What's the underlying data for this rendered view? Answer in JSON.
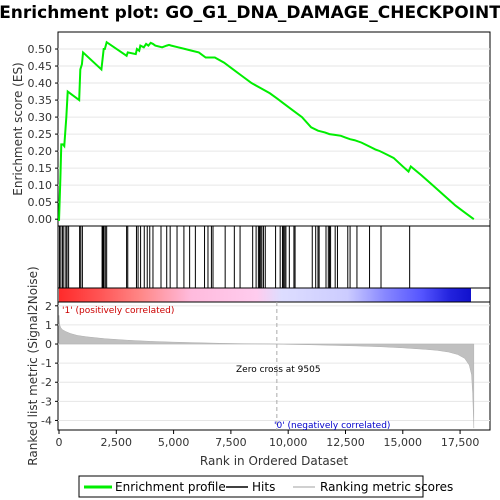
{
  "chart_data": {
    "title": "Enrichment plot: GO_G1_DNA_DAMAGE_CHECKPOINT",
    "type": "line",
    "xlabel": "Rank in Ordered Dataset",
    "xlim": [
      0,
      18500
    ],
    "x_ticks": [
      0,
      2500,
      5000,
      7500,
      10000,
      12500,
      15000,
      17500
    ],
    "x_tick_labels": [
      "0",
      "2,500",
      "5,000",
      "7,500",
      "10,000",
      "12,500",
      "15,000",
      "17,500"
    ],
    "es_panel": {
      "ylabel": "Enrichment score (ES)",
      "ylim": [
        -0.02,
        0.55
      ],
      "y_ticks": [
        0.0,
        0.05,
        0.1,
        0.15,
        0.2,
        0.25,
        0.3,
        0.35,
        0.4,
        0.45,
        0.5
      ],
      "y_tick_labels": [
        "0.00",
        "0.05",
        "0.10",
        "0.15",
        "0.20",
        "0.25",
        "0.30",
        "0.35",
        "0.40",
        "0.45",
        "0.50"
      ],
      "series": [
        {
          "name": "Enrichment profile",
          "color": "#00ee00",
          "x": [
            0,
            60,
            100,
            170,
            230,
            320,
            380,
            880,
            930,
            1000,
            1050,
            1850,
            1900,
            1950,
            2000,
            2080,
            2950,
            3000,
            3350,
            3400,
            3500,
            3550,
            3700,
            3800,
            3900,
            4000,
            4100,
            4200,
            4500,
            4700,
            4800,
            4900,
            5200,
            5500,
            5800,
            6100,
            6400,
            6600,
            6800,
            7200,
            7600,
            8000,
            8400,
            8800,
            9200,
            9505,
            9800,
            10200,
            10600,
            11000,
            11300,
            11600,
            11800,
            12000,
            12300,
            12500,
            12700,
            12900,
            13200,
            13500,
            13800,
            14000,
            14300,
            14600,
            15000,
            15250,
            15350,
            15800,
            16300,
            16800,
            17300,
            17700,
            18100
          ],
          "y": [
            -0.005,
            0.12,
            0.22,
            0.22,
            0.215,
            0.3,
            0.375,
            0.35,
            0.44,
            0.455,
            0.49,
            0.44,
            0.47,
            0.5,
            0.5,
            0.52,
            0.48,
            0.49,
            0.485,
            0.5,
            0.495,
            0.51,
            0.505,
            0.515,
            0.51,
            0.518,
            0.515,
            0.51,
            0.505,
            0.51,
            0.512,
            0.51,
            0.505,
            0.5,
            0.495,
            0.49,
            0.475,
            0.475,
            0.475,
            0.46,
            0.44,
            0.42,
            0.4,
            0.385,
            0.37,
            0.355,
            0.34,
            0.32,
            0.3,
            0.27,
            0.26,
            0.255,
            0.25,
            0.248,
            0.245,
            0.24,
            0.235,
            0.232,
            0.225,
            0.215,
            0.205,
            0.2,
            0.19,
            0.18,
            0.155,
            0.14,
            0.155,
            0.13,
            0.1,
            0.07,
            0.04,
            0.02,
            0.0
          ]
        }
      ]
    },
    "hits": [
      20,
      80,
      150,
      210,
      300,
      350,
      420,
      900,
      950,
      1020,
      1880,
      1920,
      1960,
      2020,
      2080,
      2950,
      3000,
      3380,
      3450,
      3560,
      3720,
      3850,
      3960,
      4100,
      4450,
      4700,
      4850,
      5150,
      5450,
      5700,
      5950,
      6350,
      6500,
      6650,
      6720,
      7250,
      7650,
      7900,
      8450,
      8600,
      8700,
      8750,
      8800,
      8850,
      8920,
      9000,
      9450,
      9650,
      9750,
      9800,
      9850,
      9900,
      10050,
      10250,
      10300,
      11050,
      11200,
      11300,
      11350,
      11650,
      11750,
      11800,
      11850,
      12050,
      12150,
      12600,
      12700,
      13000,
      13550,
      14050,
      15300
    ],
    "ranked_panel": {
      "ylabel": "Ranked list metric (Signal2Noise)",
      "ylim": [
        -4.5,
        2.2
      ],
      "y_ticks": [
        2,
        1,
        0,
        -1,
        -2,
        -3,
        -4
      ],
      "y_tick_labels": [
        "2",
        "1",
        "0",
        "-1",
        "-2",
        "-3",
        "-4"
      ],
      "metric_x": [
        0,
        30,
        80,
        150,
        300,
        500,
        800,
        1200,
        2000,
        3000,
        4000,
        5000,
        6000,
        7000,
        8000,
        9000,
        9505,
        10000,
        11000,
        12000,
        13000,
        14000,
        15000,
        16000,
        16500,
        17000,
        17400,
        17700,
        17900,
        18000,
        18050,
        18100
      ],
      "metric_y": [
        1.5,
        1.0,
        0.85,
        0.75,
        0.65,
        0.55,
        0.45,
        0.38,
        0.28,
        0.2,
        0.14,
        0.1,
        0.07,
        0.04,
        0.02,
        0.01,
        0.0,
        -0.02,
        -0.04,
        -0.07,
        -0.1,
        -0.14,
        -0.2,
        -0.28,
        -0.33,
        -0.42,
        -0.55,
        -0.75,
        -1.1,
        -1.6,
        -2.6,
        -4.4
      ],
      "annotations": {
        "positive": "'1' (positively correlated)",
        "negative": "'0' (negatively correlated)",
        "zero_cross": "Zero cross at 9505"
      },
      "zero_cross_x": 9505
    },
    "legend": {
      "placement": "bottom",
      "items": [
        {
          "label": "Enrichment profile",
          "color": "#00ee00"
        },
        {
          "label": "Hits",
          "color": "#000000"
        },
        {
          "label": "Ranking metric scores",
          "color": "#c0c0c0"
        }
      ]
    }
  }
}
